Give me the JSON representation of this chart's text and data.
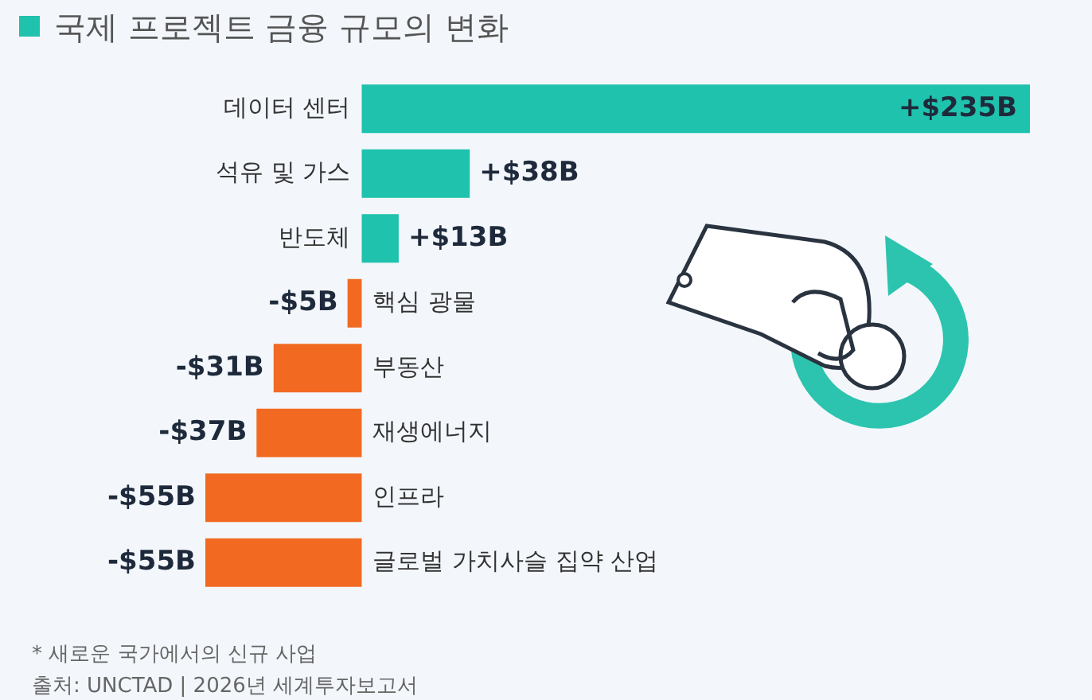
{
  "chart_data": {
    "type": "bar",
    "orientation": "horizontal",
    "title": "국제 프로젝트 금융 규모의 변화",
    "categories": [
      "데이터 센터",
      "석유 및 가스",
      "반도체",
      "핵심 광물",
      "부동산",
      "재생에너지",
      "인프라",
      "글로벌 가치사슬 집약 산업"
    ],
    "values": [
      235,
      38,
      13,
      -5,
      -31,
      -37,
      -55,
      -55
    ],
    "colors": [
      "#1fc2ad",
      "#1fc2ad",
      "#1fc2ad",
      "#f26a22",
      "#f26a22",
      "#f26a22",
      "#f26a22",
      "#f26a22"
    ],
    "value_labels": [
      "+$235B",
      "+$38B",
      "+$13B",
      "-$5B",
      "-$31B",
      "-$37B",
      "-$55B",
      "-$55B"
    ],
    "annotations": [
      "* 새로운 국가에서의 신규 사업",
      "출처: UNCTAD | 2026년 세계투자보고서"
    ]
  }
}
